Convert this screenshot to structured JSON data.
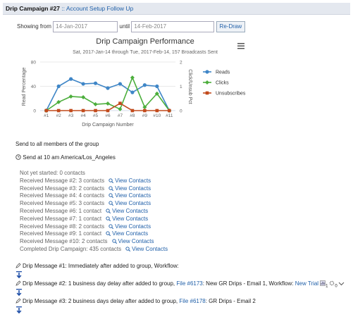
{
  "header": {
    "title": "Drip Campaign #27",
    "subtitle": ":: Account Setup Follow Up"
  },
  "filter": {
    "from_label": "Showing from",
    "from": "14-Jan-2017",
    "until_label": "until",
    "until": "14-Feb-2017",
    "button": "Re-Draw"
  },
  "chart_data": {
    "type": "line",
    "title": "Drip Campaign Performance",
    "subtitle": "Sat, 2017-Jan-14 through Tue, 2017-Feb-14, 157 Broadcasts Sent",
    "x_label": "Drip Campaign Number",
    "y_label": "Read Percentage",
    "y2_label": "Click/Unsub Pct",
    "categories": [
      "#1",
      "#2",
      "#3",
      "#4",
      "#5",
      "#6",
      "#7",
      "#8",
      "#9",
      "#10",
      "#11"
    ],
    "ylim": [
      0,
      80
    ],
    "yticks": [
      0,
      40,
      80
    ],
    "y2lim": [
      0,
      2
    ],
    "y2ticks": [
      0,
      1,
      2
    ],
    "grid": true,
    "legend": "right",
    "series": [
      {
        "name": "Reads",
        "color": "#3f86c7",
        "marker": "circle",
        "values": [
          0,
          40,
          52,
          44,
          45,
          37,
          44,
          30,
          42,
          40,
          0
        ]
      },
      {
        "name": "Clicks",
        "color": "#4cae3c",
        "marker": "diamond",
        "axis": "y2",
        "values": [
          0,
          0.35,
          0.58,
          0.55,
          0.26,
          0.29,
          0.06,
          1.36,
          0.14,
          0.7,
          0
        ]
      },
      {
        "name": "Unsubscribes",
        "color": "#c24a1c",
        "marker": "square",
        "axis": "y2",
        "values": [
          0,
          0,
          0,
          0,
          0,
          0,
          0.3,
          0,
          0,
          0,
          0
        ]
      }
    ]
  },
  "send": {
    "group": "Send to all members of the group",
    "time": "Send at 10 am America/Los_Angeles"
  },
  "status": [
    {
      "text": "Not yet started: 0 contacts"
    },
    {
      "text": "Received Message #2: 3 contacts",
      "link": "View Contacts"
    },
    {
      "text": "Received Message #3: 2 contacts",
      "link": "View Contacts"
    },
    {
      "text": "Received Message #4: 4 contacts",
      "link": "View Contacts"
    },
    {
      "text": "Received Message #5: 3 contacts",
      "link": "View Contacts"
    },
    {
      "text": "Received Message #6: 1 contact",
      "link": "View Contacts"
    },
    {
      "text": "Received Message #7: 1 contact",
      "link": "View Contacts"
    },
    {
      "text": "Received Message #8: 2 contacts",
      "link": "View Contacts"
    },
    {
      "text": "Received Message #9: 1 contact",
      "link": "View Contacts"
    },
    {
      "text": "Received Message #10: 2 contacts",
      "link": "View Contacts"
    },
    {
      "text": "Completed Drip Campaign: 435 contacts",
      "link": "View Contacts"
    }
  ],
  "messages": [
    {
      "text": "Drip Message #1: Immediately after added to group, Workflow:"
    },
    {
      "text": "Drip Message #2: 1 business day delay after added to group,",
      "file": "File #6173",
      "rest": ": New GR Drips - Email 1, Workflow:",
      "workflow": "New Trial",
      "count1": "1",
      "count2": "0"
    },
    {
      "text": "Drip Message #3: 2 business days delay after added to group,",
      "file": "File #6178",
      "rest": ": GR Drips - Email 2"
    }
  ]
}
